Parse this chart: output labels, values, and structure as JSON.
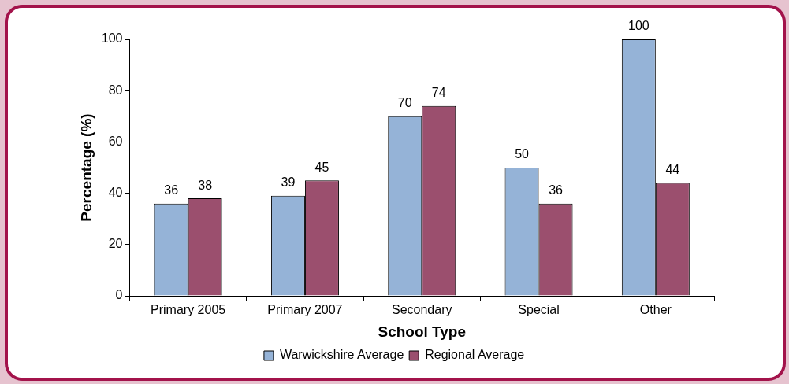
{
  "chart_data": {
    "type": "bar",
    "xlabel": "School Type",
    "ylabel": "Percentage (%)",
    "categories": [
      "Primary 2005",
      "Primary 2007",
      "Secondary",
      "Special",
      "Other"
    ],
    "series": [
      {
        "name": "Warwickshire Average",
        "color": "#95b3d7",
        "values": [
          36,
          39,
          70,
          50,
          100
        ]
      },
      {
        "name": "Regional Average",
        "color": "#9b4f6e",
        "values": [
          38,
          45,
          74,
          36,
          44
        ]
      }
    ],
    "ylim": [
      0,
      100
    ],
    "yticks": [
      0,
      20,
      40,
      60,
      80,
      100
    ],
    "grid": false,
    "legend": "bottom",
    "data_labels": true
  }
}
